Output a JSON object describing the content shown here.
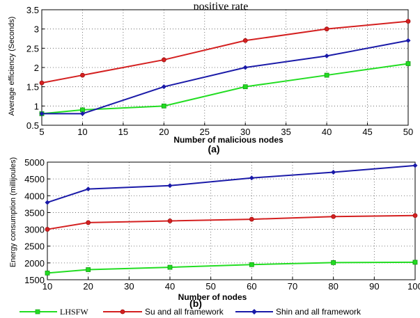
{
  "chart_data": [
    {
      "type": "line",
      "title": "positive rate",
      "subtitle": "(a)",
      "xlabel": "Number of malicious nodes",
      "ylabel": "Average efficiency (Seconds)",
      "x": [
        5,
        10,
        20,
        30,
        40,
        50
      ],
      "xlim": [
        5,
        50
      ],
      "ylim": [
        0.5,
        3.5
      ],
      "xticks": [
        "5",
        "10",
        "15",
        "20",
        "25",
        "30",
        "35",
        "40",
        "45",
        "50"
      ],
      "yticks": [
        "0.5",
        "1",
        "1.5",
        "2",
        "2.5",
        "3",
        "3.5"
      ],
      "grid": true,
      "series": [
        {
          "name": "LHSFW",
          "color": "#22dd22",
          "marker": "square",
          "values": [
            0.8,
            0.9,
            1.0,
            1.5,
            1.8,
            2.1
          ]
        },
        {
          "name": "Su and all framework",
          "color": "#d42020",
          "marker": "circle",
          "values": [
            1.6,
            1.8,
            2.2,
            2.7,
            3.0,
            3.2
          ]
        },
        {
          "name": "Shin and all framework",
          "color": "#1a1aa8",
          "marker": "diamond",
          "values": [
            0.8,
            0.8,
            1.5,
            2.0,
            2.3,
            2.7
          ]
        }
      ]
    },
    {
      "type": "line",
      "subtitle": "(b)",
      "xlabel": "Number of nodes",
      "ylabel": "Energy consumption (millijoules)",
      "x": [
        10,
        20,
        40,
        60,
        80,
        100
      ],
      "xlim": [
        10,
        100
      ],
      "ylim": [
        1500,
        5000
      ],
      "xticks": [
        "10",
        "20",
        "30",
        "40",
        "50",
        "60",
        "70",
        "80",
        "90",
        "100"
      ],
      "yticks": [
        "1500",
        "2000",
        "2500",
        "3000",
        "3500",
        "4000",
        "4500",
        "5000"
      ],
      "grid": true,
      "series": [
        {
          "name": "LHSFW",
          "color": "#22dd22",
          "marker": "square",
          "values": [
            1700,
            1800,
            1870,
            1950,
            2010,
            2020
          ]
        },
        {
          "name": "Su and all framework",
          "color": "#d42020",
          "marker": "circle",
          "values": [
            3000,
            3200,
            3250,
            3300,
            3380,
            3410
          ]
        },
        {
          "name": "Shin and all framework",
          "color": "#1a1aa8",
          "marker": "diamond",
          "values": [
            3800,
            4200,
            4300,
            4530,
            4700,
            4900
          ]
        }
      ]
    }
  ],
  "legend": {
    "placement": "bottom",
    "items": [
      "LHSFW",
      "Su and all framework",
      "Shin and all framework"
    ]
  }
}
